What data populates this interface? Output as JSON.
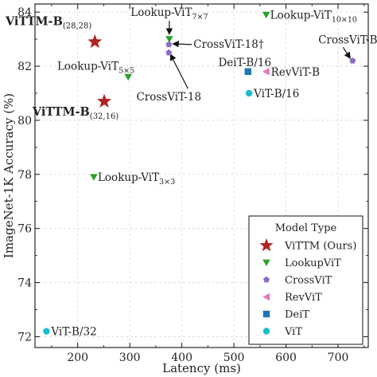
{
  "chart_data": {
    "type": "scatter",
    "xlabel": "Latency (ms)",
    "ylabel": "ImageNet-1K Accuracy (%)",
    "xlim": [
      118,
      758
    ],
    "ylim": [
      71.6,
      84.3
    ],
    "xticks": [
      200,
      300,
      400,
      500,
      600,
      700
    ],
    "yticks": [
      72,
      74,
      76,
      78,
      80,
      82,
      84
    ],
    "grid": true,
    "legend": {
      "title": "Model Type",
      "position": "lower-right",
      "entries": [
        {
          "series": "vittm",
          "label": "ViTTM (Ours)"
        },
        {
          "series": "lookupvit",
          "label": "LookupViT"
        },
        {
          "series": "crossvit",
          "label": "CrossViT"
        },
        {
          "series": "revvit",
          "label": "RevViT"
        },
        {
          "series": "deit",
          "label": "DeiT"
        },
        {
          "series": "vit",
          "label": "ViT"
        }
      ]
    },
    "series": [
      {
        "key": "vittm",
        "name": "ViTTM (Ours)",
        "marker": "star",
        "color": "#b22222",
        "points": [
          {
            "x": 233,
            "y": 82.9,
            "label_main": "ViTTM-B",
            "label_sub": "(28,28)",
            "bold": true
          },
          {
            "x": 251,
            "y": 80.7,
            "label_main": "ViTTM-B",
            "label_sub": "(32,16)",
            "bold": true
          }
        ]
      },
      {
        "key": "lookupvit",
        "name": "LookupViT",
        "marker": "triangle-down",
        "color": "#2ca02c",
        "points": [
          {
            "x": 376,
            "y": 83.0,
            "label_main": "Lookup-ViT",
            "label_sub": "7×7"
          },
          {
            "x": 562,
            "y": 83.9,
            "label_main": "Lookup-ViT",
            "label_sub": "10×10"
          },
          {
            "x": 297,
            "y": 81.6,
            "label_main": "Lookup-ViT",
            "label_sub": "5×5"
          },
          {
            "x": 231,
            "y": 77.9,
            "label_main": "Lookup-ViT",
            "label_sub": "3×3"
          }
        ]
      },
      {
        "key": "crossvit",
        "name": "CrossViT",
        "marker": "pentagon",
        "color": "#8e6bbf",
        "points": [
          {
            "x": 375,
            "y": 82.8,
            "label_main": "CrossViT-18†",
            "label_sub": ""
          },
          {
            "x": 375,
            "y": 82.5,
            "label_main": "CrossViT-18",
            "label_sub": ""
          },
          {
            "x": 728,
            "y": 82.2,
            "label_main": "CrossViT-B",
            "label_sub": ""
          }
        ]
      },
      {
        "key": "revvit",
        "name": "RevViT",
        "marker": "triangle-left",
        "color": "#e377c2",
        "points": [
          {
            "x": 562,
            "y": 81.8,
            "label_main": "RevViT-B",
            "label_sub": ""
          }
        ]
      },
      {
        "key": "deit",
        "name": "DeiT",
        "marker": "square",
        "color": "#1f77b4",
        "points": [
          {
            "x": 527,
            "y": 81.8,
            "label_main": "DeiT-B/16",
            "label_sub": ""
          }
        ]
      },
      {
        "key": "vit",
        "name": "ViT",
        "marker": "circle",
        "color": "#17becf",
        "points": [
          {
            "x": 529,
            "y": 81.0,
            "label_main": "ViT-B/16",
            "label_sub": ""
          },
          {
            "x": 140,
            "y": 72.2,
            "label_main": "ViT-B/32",
            "label_sub": ""
          }
        ]
      }
    ]
  }
}
